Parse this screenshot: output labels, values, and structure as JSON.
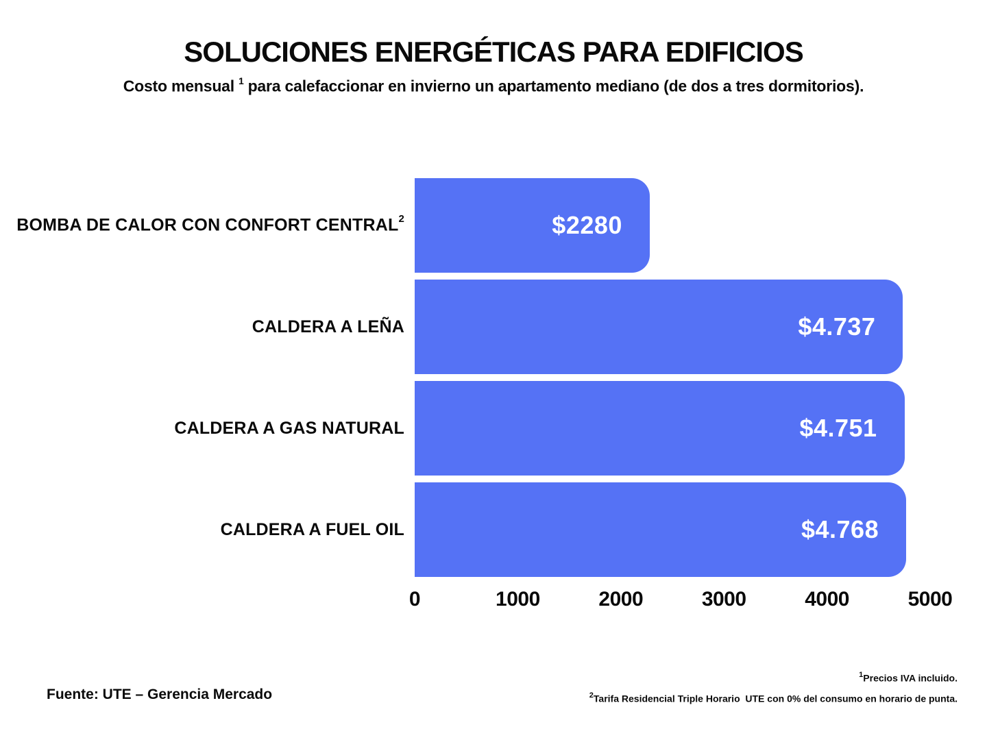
{
  "title": "SOLUCIONES ENERGÉTICAS PARA EDIFICIOS",
  "subtitle": {
    "pre": "Costo mensual",
    "sup": "1",
    "post": "para calefaccionar en invierno un apartamento mediano (de dos a tres dormitorios)."
  },
  "chart_data": {
    "type": "bar",
    "orientation": "horizontal",
    "title": "SOLUCIONES ENERGÉTICAS PARA EDIFICIOS",
    "subtitle": "Costo mensual¹ para calefaccionar en invierno un apartamento mediano (de dos a tres dormitorios).",
    "categories": [
      "BOMBA DE CALOR CON CONFORT CENTRAL",
      "CALDERA A LEÑA",
      "CALDERA A GAS NATURAL",
      "CALDERA A FUEL OIL"
    ],
    "category_superscripts": [
      "2",
      "",
      "",
      ""
    ],
    "values": [
      2280,
      4737,
      4751,
      4768
    ],
    "value_labels": [
      "$2280",
      "$4.737",
      "$4.751",
      "$4.768"
    ],
    "xlim": [
      0,
      5000
    ],
    "x_ticks": [
      0,
      1000,
      2000,
      3000,
      4000,
      5000
    ],
    "x_tick_labels": [
      "0",
      "1000",
      "2000",
      "3000",
      "4000",
      "5000"
    ],
    "xlabel": "",
    "ylabel": "",
    "grid": false,
    "legend": false,
    "bar_color": "#5572F5",
    "value_label_color": "#FFFFFF",
    "text_color": "#0A0A0A",
    "background_color": "#FFFFFF"
  },
  "footer": {
    "source": "Fuente: UTE – Gerencia Mercado",
    "note1": {
      "sup": "1",
      "text": "Precios IVA incluido."
    },
    "note2": {
      "sup": "2",
      "text": "Tarifa Residencial Triple Horario  UTE con 0% del consumo en horario de punta."
    }
  }
}
